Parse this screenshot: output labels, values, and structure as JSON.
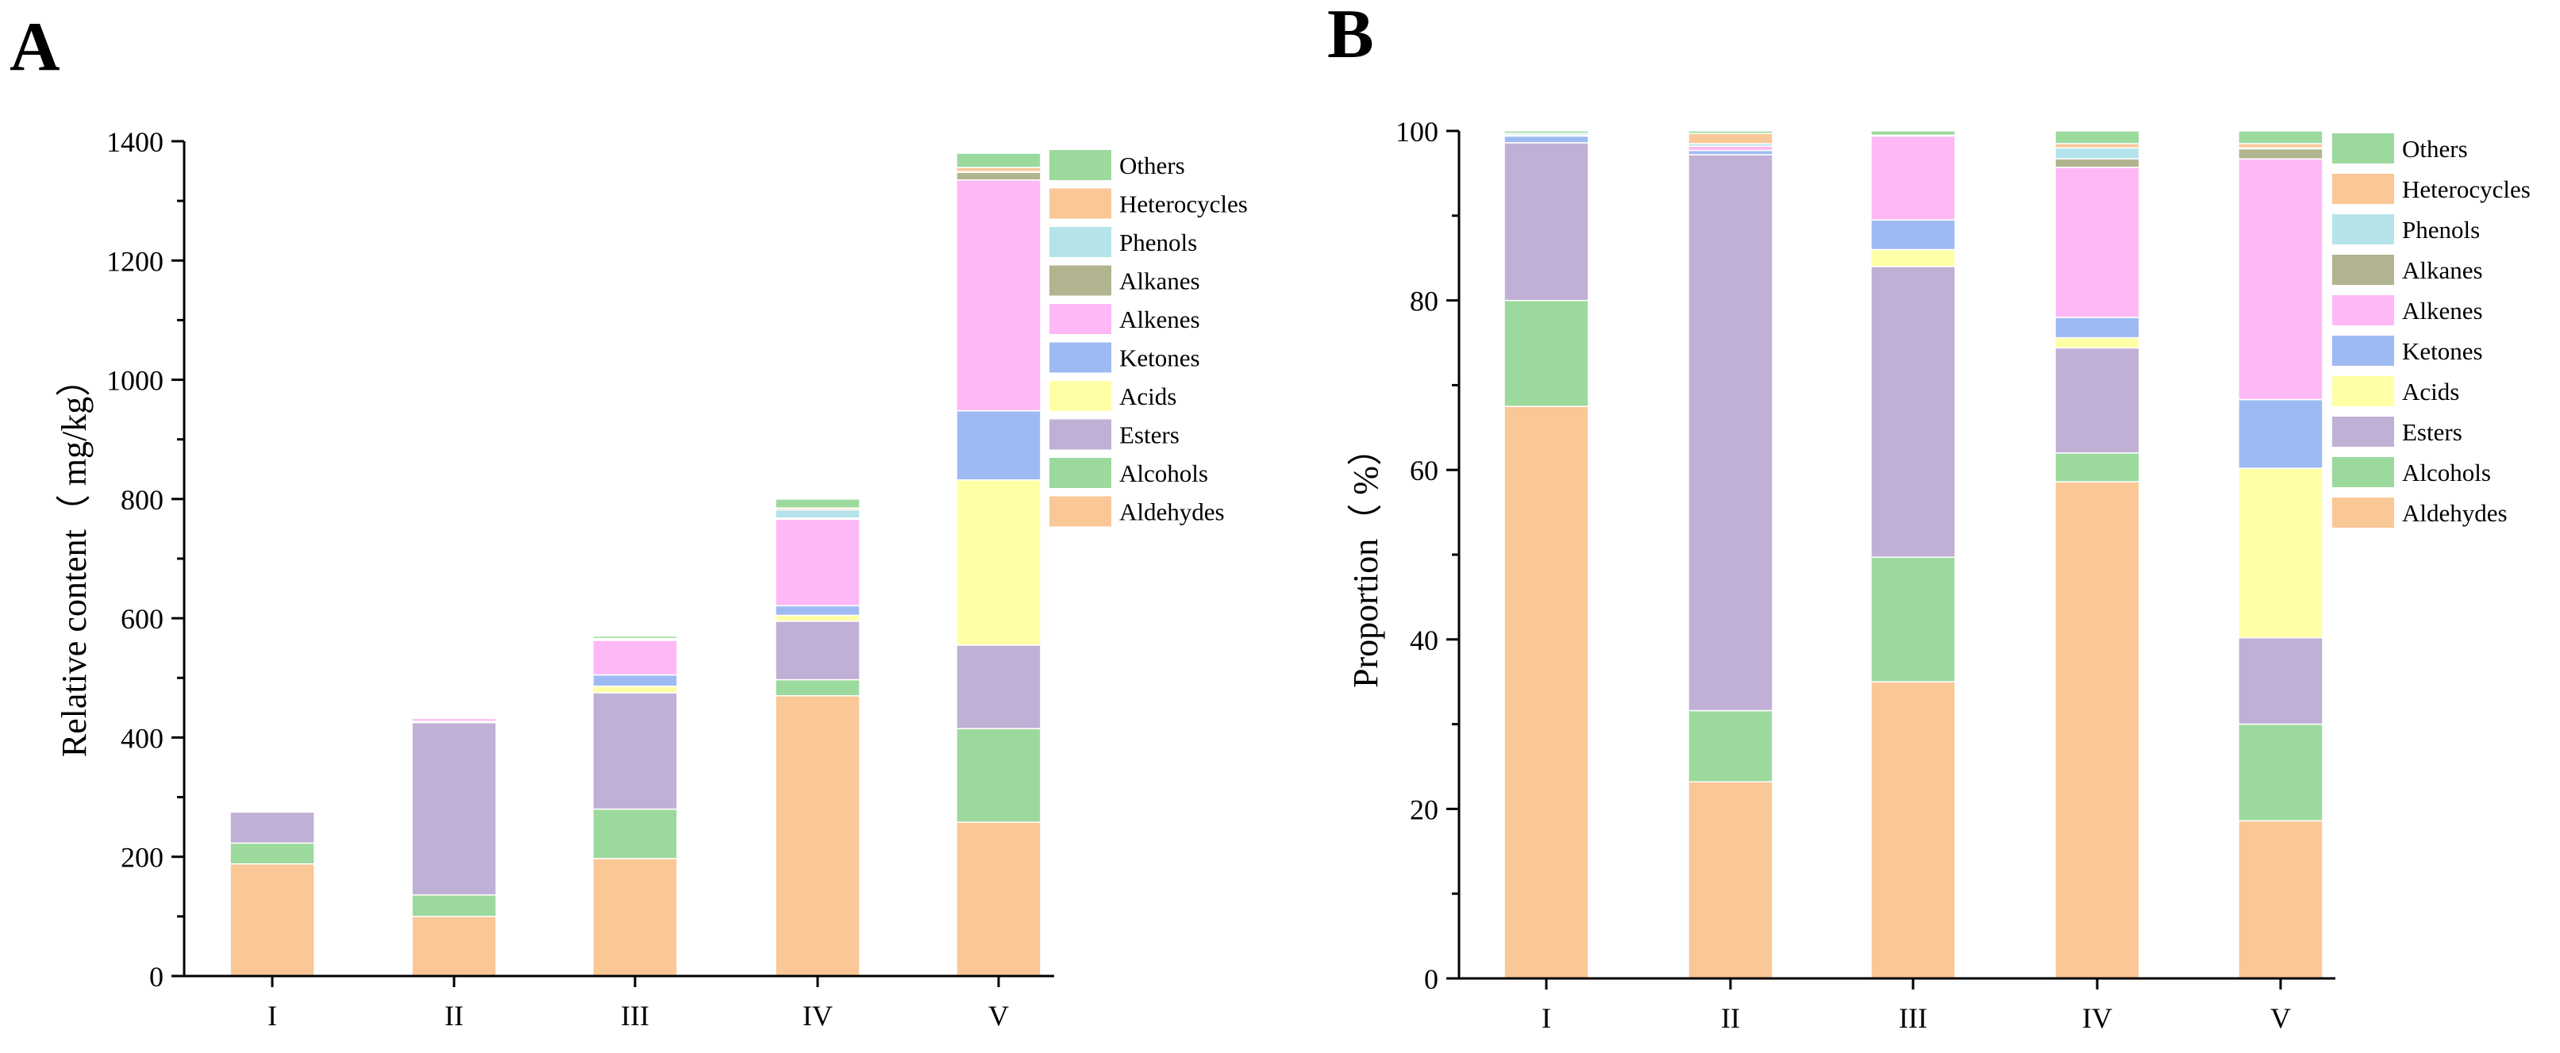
{
  "figure": {
    "panels": [
      "A",
      "B"
    ]
  },
  "colors": {
    "Aldehydes": "#FAC797",
    "Alcohols": "#9CD99D",
    "Esters": "#C0B0D6",
    "Acids": "#FFFFA6",
    "Ketones": "#9EBAF2",
    "Alkenes": "#FEB8F5",
    "Alkanes": "#B2B48F",
    "Phenols": "#B5E3EA",
    "Heterocycles": "#FAC797",
    "Others": "#9CD99D"
  },
  "chart_data": [
    {
      "panel": "A",
      "type": "bar",
      "stacked": true,
      "categories": [
        "I",
        "II",
        "III",
        "IV",
        "V"
      ],
      "ylabel": "Relative content（ mg/kg）",
      "xlabel": "",
      "ylim": [
        0,
        1400
      ],
      "yticks": [
        0,
        200,
        400,
        600,
        800,
        1000,
        1200,
        1400
      ],
      "ytick_labels": [
        "0",
        "200",
        "400",
        "600",
        "800",
        "1000",
        "1200",
        "1400"
      ],
      "legend_position": "top-right",
      "legend_order": [
        "Others",
        "Heterocycles",
        "Phenols",
        "Alkanes",
        "Alkenes",
        "Ketones",
        "Acids",
        "Esters",
        "Alcohols",
        "Aldehydes"
      ],
      "series": [
        {
          "name": "Aldehydes",
          "values": [
            188,
            100,
            197,
            470,
            258
          ]
        },
        {
          "name": "Alcohols",
          "values": [
            35,
            36,
            83,
            27,
            157
          ]
        },
        {
          "name": "Esters",
          "values": [
            52,
            289,
            195,
            98,
            140
          ]
        },
        {
          "name": "Acids",
          "values": [
            0,
            0,
            11,
            10,
            277
          ]
        },
        {
          "name": "Ketones",
          "values": [
            1,
            2,
            19,
            16,
            116
          ]
        },
        {
          "name": "Alkenes",
          "values": [
            1,
            5,
            58,
            145,
            387
          ]
        },
        {
          "name": "Alkanes",
          "values": [
            2,
            1,
            1,
            2,
            13
          ]
        },
        {
          "name": "Phenols",
          "values": [
            1,
            1,
            1,
            14,
            1
          ]
        },
        {
          "name": "Heterocycles",
          "values": [
            0,
            1,
            1,
            3,
            7
          ]
        },
        {
          "name": "Others",
          "values": [
            0,
            0,
            4,
            15,
            24
          ]
        }
      ]
    },
    {
      "panel": "B",
      "type": "bar",
      "stacked": true,
      "categories": [
        "I",
        "II",
        "III",
        "IV",
        "V"
      ],
      "ylabel": "Proportion（ %）",
      "xlabel": "",
      "ylim": [
        0,
        100
      ],
      "yticks": [
        0,
        20,
        40,
        60,
        80,
        100
      ],
      "ytick_labels": [
        "0",
        "20",
        "40",
        "60",
        "80",
        "100"
      ],
      "legend_position": "top-right",
      "legend_order": [
        "Others",
        "Heterocycles",
        "Phenols",
        "Alkanes",
        "Alkenes",
        "Ketones",
        "Acids",
        "Esters",
        "Alcohols",
        "Aldehydes"
      ],
      "series": [
        {
          "name": "Aldehydes",
          "values": [
            67.5,
            23.2,
            35.0,
            58.6,
            18.6
          ]
        },
        {
          "name": "Alcohols",
          "values": [
            12.5,
            8.4,
            14.7,
            3.4,
            11.4
          ]
        },
        {
          "name": "Esters",
          "values": [
            18.6,
            65.6,
            34.3,
            12.4,
            10.2
          ]
        },
        {
          "name": "Acids",
          "values": [
            0.0,
            0.0,
            2.0,
            1.2,
            20.0
          ]
        },
        {
          "name": "Ketones",
          "values": [
            0.8,
            0.5,
            3.5,
            2.4,
            8.1
          ]
        },
        {
          "name": "Alkenes",
          "values": [
            0.1,
            0.5,
            9.9,
            17.7,
            28.4
          ]
        },
        {
          "name": "Alkanes",
          "values": [
            0.0,
            0.0,
            0.0,
            1.0,
            1.2
          ]
        },
        {
          "name": "Phenols",
          "values": [
            0.2,
            0.3,
            0.1,
            1.3,
            0.1
          ]
        },
        {
          "name": "Heterocycles",
          "values": [
            0.0,
            1.2,
            0.0,
            0.5,
            0.5
          ]
        },
        {
          "name": "Others",
          "values": [
            0.3,
            0.3,
            0.5,
            1.5,
            1.5
          ]
        }
      ]
    }
  ]
}
